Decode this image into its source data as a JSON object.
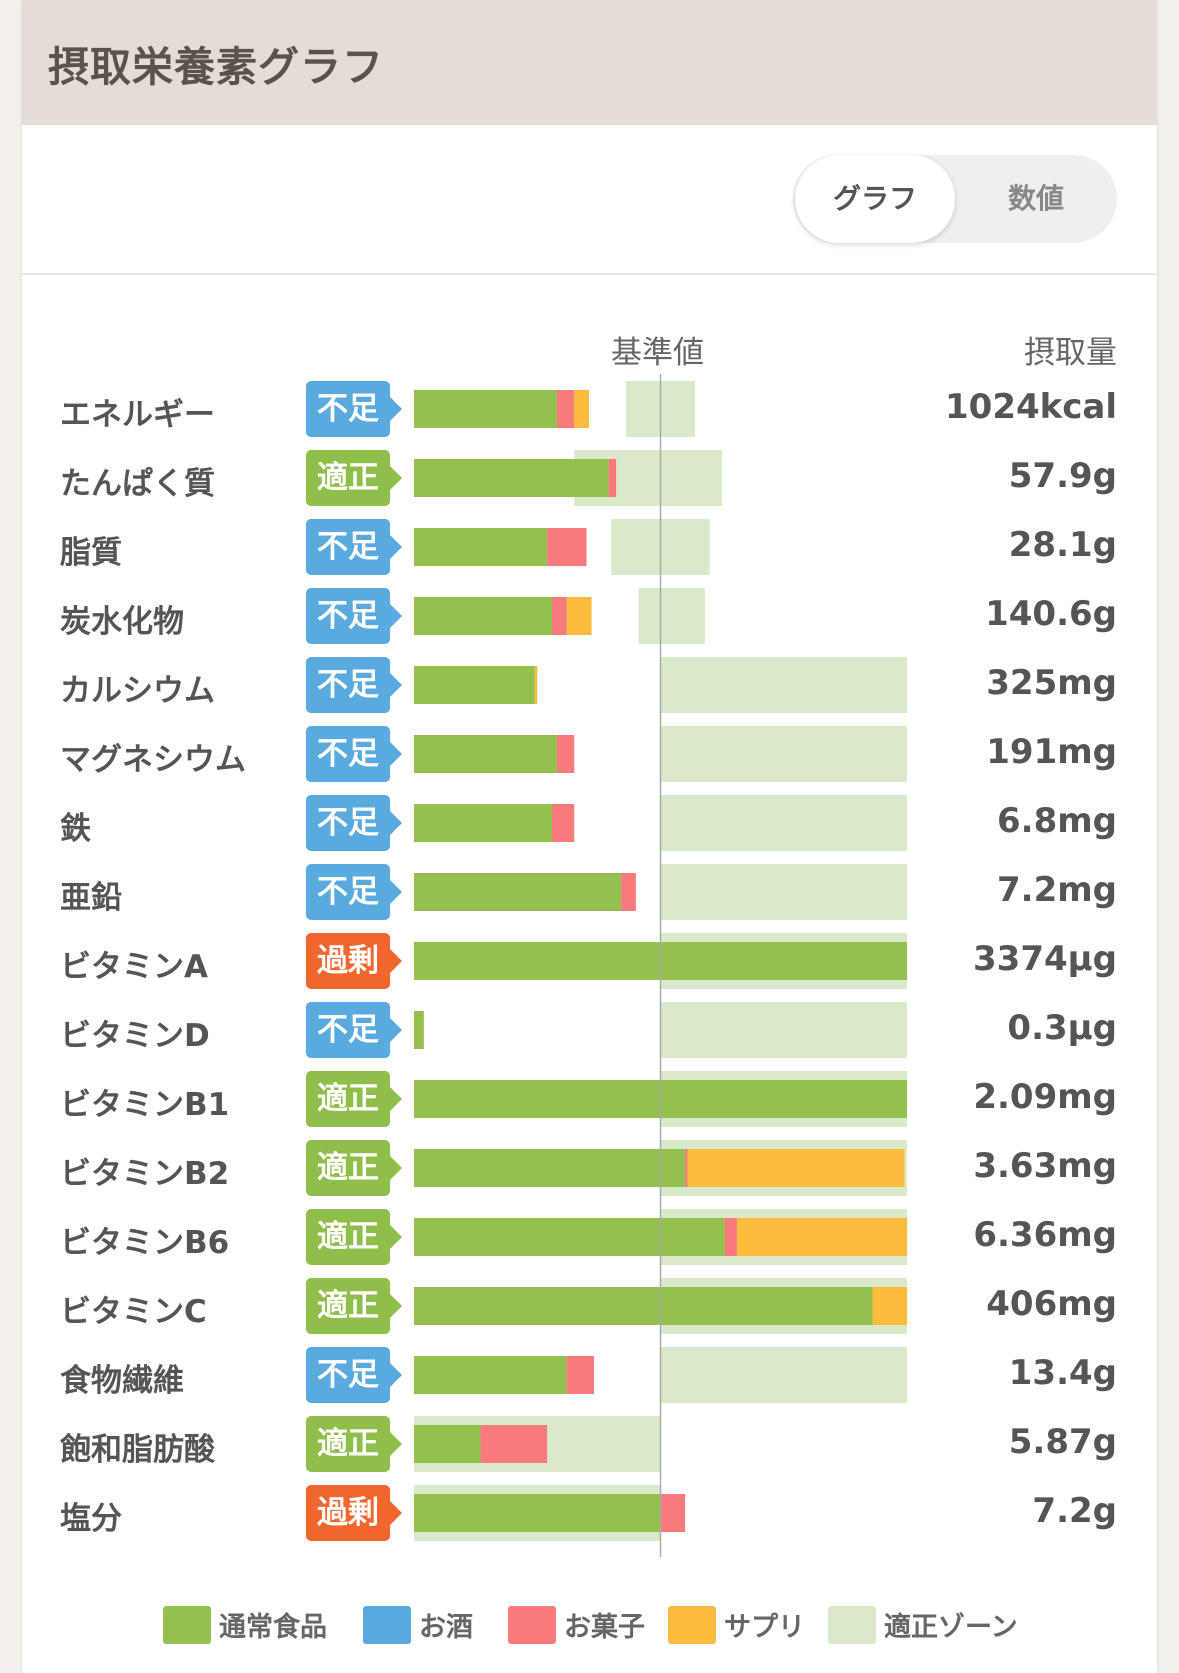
{
  "header": {
    "title": "摂取栄養素グラフ"
  },
  "toggle": {
    "graph": "グラフ",
    "numeric": "数値"
  },
  "columns": {
    "baseline": "基準値",
    "intake": "摂取量"
  },
  "colors": {
    "normal_food": "#94c04f",
    "alcohol": "#5aaae0",
    "sweets": "#f87a7a",
    "supplement": "#fbbb3d",
    "zone": "#dbe9cb",
    "status_low": "#5aaae0",
    "status_ok": "#8fbf4a",
    "status_over": "#f0662d"
  },
  "legend": [
    {
      "label": "通常食品",
      "color": "#94c04f"
    },
    {
      "label": "お酒",
      "color": "#5aaae0"
    },
    {
      "label": "お菓子",
      "color": "#f87a7a"
    },
    {
      "label": "サプリ",
      "color": "#fbbb3d"
    },
    {
      "label": "適正ゾーン",
      "color": "#dbe9cb"
    }
  ],
  "chart_data": {
    "type": "bar",
    "orientation": "horizontal",
    "stacked": true,
    "baseline_value": 100,
    "value_unit": "percent_of_baseline",
    "x_range": [
      0,
      200
    ],
    "series": [
      {
        "name": "通常食品",
        "color": "#94c04f"
      },
      {
        "name": "お酒",
        "color": "#5aaae0"
      },
      {
        "name": "お菓子",
        "color": "#f87a7a"
      },
      {
        "name": "サプリ",
        "color": "#fbbb3d"
      }
    ],
    "rows": [
      {
        "name": "エネルギー",
        "status": "不足",
        "status_type": "low",
        "amount": "1024kcal",
        "segments": [
          58,
          0,
          7,
          6
        ],
        "zone": [
          86,
          114
        ]
      },
      {
        "name": "たんぱく質",
        "status": "適正",
        "status_type": "ok",
        "amount": "57.9g",
        "segments": [
          79,
          0,
          3,
          0
        ],
        "zone": [
          65,
          125
        ]
      },
      {
        "name": "脂質",
        "status": "不足",
        "status_type": "low",
        "amount": "28.1g",
        "segments": [
          54,
          0,
          16,
          0
        ],
        "zone": [
          80,
          120
        ]
      },
      {
        "name": "炭水化物",
        "status": "不足",
        "status_type": "low",
        "amount": "140.6g",
        "segments": [
          56,
          0,
          6,
          10
        ],
        "zone": [
          91,
          118
        ]
      },
      {
        "name": "カルシウム",
        "status": "不足",
        "status_type": "low",
        "amount": "325mg",
        "segments": [
          49,
          0,
          0,
          1
        ],
        "zone": [
          100,
          200
        ]
      },
      {
        "name": "マグネシウム",
        "status": "不足",
        "status_type": "low",
        "amount": "191mg",
        "segments": [
          58,
          0,
          7,
          0
        ],
        "zone": [
          100,
          200
        ]
      },
      {
        "name": "鉄",
        "status": "不足",
        "status_type": "low",
        "amount": "6.8mg",
        "segments": [
          56,
          0,
          9,
          0
        ],
        "zone": [
          100,
          200
        ]
      },
      {
        "name": "亜鉛",
        "status": "不足",
        "status_type": "low",
        "amount": "7.2mg",
        "segments": [
          84,
          0,
          6,
          0
        ],
        "zone": [
          100,
          200
        ]
      },
      {
        "name": "ビタミンA",
        "status": "過剰",
        "status_type": "over",
        "amount": "3374μg",
        "segments": [
          200,
          0,
          0,
          0
        ],
        "zone": [
          100,
          200
        ]
      },
      {
        "name": "ビタミンD",
        "status": "不足",
        "status_type": "low",
        "amount": "0.3μg",
        "segments": [
          4,
          0,
          0,
          0
        ],
        "zone": [
          100,
          200
        ]
      },
      {
        "name": "ビタミンB1",
        "status": "適正",
        "status_type": "ok",
        "amount": "2.09mg",
        "segments": [
          200,
          0,
          0,
          0
        ],
        "zone": [
          100,
          200
        ]
      },
      {
        "name": "ビタミンB2",
        "status": "適正",
        "status_type": "ok",
        "amount": "3.63mg",
        "segments": [
          110,
          0,
          1,
          88
        ],
        "zone": [
          100,
          200
        ]
      },
      {
        "name": "ビタミンB6",
        "status": "適正",
        "status_type": "ok",
        "amount": "6.36mg",
        "segments": [
          126,
          0,
          5,
          69
        ],
        "zone": [
          100,
          200
        ]
      },
      {
        "name": "ビタミンC",
        "status": "適正",
        "status_type": "ok",
        "amount": "406mg",
        "segments": [
          186,
          0,
          0,
          14
        ],
        "zone": [
          100,
          200
        ]
      },
      {
        "name": "食物繊維",
        "status": "不足",
        "status_type": "low",
        "amount": "13.4g",
        "segments": [
          62,
          0,
          11,
          0
        ],
        "zone": [
          100,
          200
        ]
      },
      {
        "name": "飽和脂肪酸",
        "status": "適正",
        "status_type": "ok",
        "amount": "5.87g",
        "segments": [
          27,
          0,
          27,
          0
        ],
        "zone": [
          0,
          100
        ]
      },
      {
        "name": "塩分",
        "status": "過剰",
        "status_type": "over",
        "amount": "7.2g",
        "segments": [
          100,
          0,
          10,
          0
        ],
        "zone": [
          0,
          100
        ]
      }
    ]
  }
}
